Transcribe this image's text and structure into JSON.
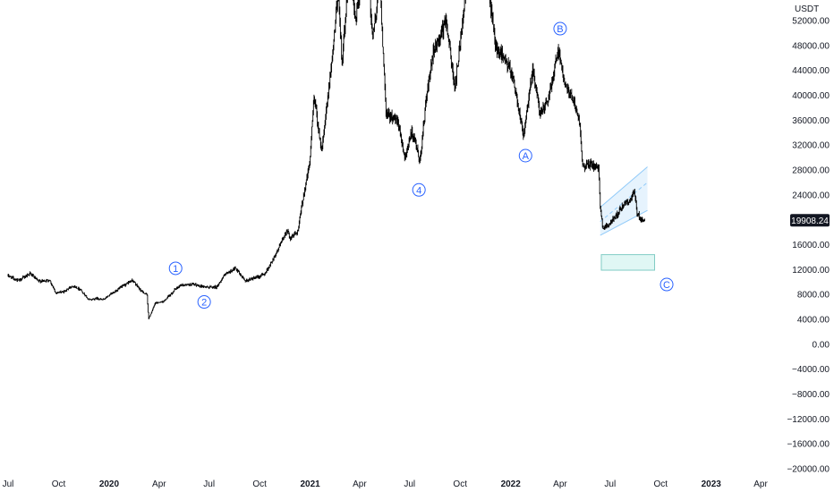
{
  "chart_data": {
    "type": "candlestick",
    "quote_unit": "USDT",
    "last_price_label": "19908.24",
    "last_price": 19908.24,
    "ylim": [
      -20000,
      54000
    ],
    "y_ticks": [
      "52000.00",
      "48000.00",
      "44000.00",
      "40000.00",
      "36000.00",
      "32000.00",
      "28000.00",
      "24000.00",
      "20000.00",
      "16000.00",
      "12000.00",
      "8000.00",
      "4000.00",
      "0.00",
      "−4000.00",
      "−8000.00",
      "−12000.00",
      "−16000.00",
      "−20000.00"
    ],
    "y_tick_values": [
      52000,
      48000,
      44000,
      40000,
      36000,
      32000,
      28000,
      24000,
      20000,
      16000,
      12000,
      8000,
      4000,
      0,
      -4000,
      -8000,
      -12000,
      -16000,
      -20000
    ],
    "x_ticks": [
      {
        "label": "Jul",
        "date": "2019-07-01",
        "bold": false
      },
      {
        "label": "Oct",
        "date": "2019-10-01",
        "bold": false
      },
      {
        "label": "2020",
        "date": "2020-01-01",
        "bold": true
      },
      {
        "label": "Apr",
        "date": "2020-04-01",
        "bold": false
      },
      {
        "label": "Jul",
        "date": "2020-07-01",
        "bold": false
      },
      {
        "label": "Oct",
        "date": "2020-10-01",
        "bold": false
      },
      {
        "label": "2021",
        "date": "2021-01-01",
        "bold": true
      },
      {
        "label": "Apr",
        "date": "2021-04-01",
        "bold": false
      },
      {
        "label": "Jul",
        "date": "2021-07-01",
        "bold": false
      },
      {
        "label": "Oct",
        "date": "2021-10-01",
        "bold": false
      },
      {
        "label": "2022",
        "date": "2022-01-01",
        "bold": true
      },
      {
        "label": "Apr",
        "date": "2022-04-01",
        "bold": false
      },
      {
        "label": "Jul",
        "date": "2022-07-01",
        "bold": false
      },
      {
        "label": "Oct",
        "date": "2022-10-01",
        "bold": false
      },
      {
        "label": "2023",
        "date": "2023-01-01",
        "bold": true
      },
      {
        "label": "Apr",
        "date": "2023-04-01",
        "bold": false
      }
    ],
    "price_path": [
      [
        "2019-07-01",
        11000
      ],
      [
        "2019-07-20",
        10200
      ],
      [
        "2019-08-10",
        11400
      ],
      [
        "2019-08-25",
        10100
      ],
      [
        "2019-09-15",
        10300
      ],
      [
        "2019-09-25",
        8300
      ],
      [
        "2019-10-10",
        8400
      ],
      [
        "2019-10-26",
        9400
      ],
      [
        "2019-11-10",
        8800
      ],
      [
        "2019-11-25",
        7100
      ],
      [
        "2019-12-10",
        7400
      ],
      [
        "2019-12-20",
        7100
      ],
      [
        "2020-01-15",
        8700
      ],
      [
        "2020-02-12",
        10300
      ],
      [
        "2020-02-28",
        8600
      ],
      [
        "2020-03-10",
        7900
      ],
      [
        "2020-03-12",
        5200
      ],
      [
        "2020-03-13",
        4100
      ],
      [
        "2020-03-25",
        6600
      ],
      [
        "2020-04-10",
        6900
      ],
      [
        "2020-04-30",
        8800
      ],
      [
        "2020-05-10",
        9500
      ],
      [
        "2020-06-01",
        9600
      ],
      [
        "2020-06-25",
        9200
      ],
      [
        "2020-07-15",
        9200
      ],
      [
        "2020-07-28",
        11000
      ],
      [
        "2020-08-17",
        12200
      ],
      [
        "2020-09-05",
        10200
      ],
      [
        "2020-09-25",
        10700
      ],
      [
        "2020-10-10",
        11300
      ],
      [
        "2020-10-21",
        12900
      ],
      [
        "2020-11-05",
        15500
      ],
      [
        "2020-11-20",
        18400
      ],
      [
        "2020-11-26",
        17000
      ],
      [
        "2020-12-10",
        18300
      ],
      [
        "2020-12-18",
        23000
      ],
      [
        "2020-12-31",
        29000
      ],
      [
        "2021-01-08",
        40000
      ],
      [
        "2021-01-22",
        31000
      ],
      [
        "2021-02-08",
        44000
      ],
      [
        "2021-02-21",
        57000
      ],
      [
        "2021-02-28",
        45000
      ],
      [
        "2021-03-13",
        61000
      ],
      [
        "2021-03-25",
        52000
      ],
      [
        "2021-04-14",
        64000
      ],
      [
        "2021-04-25",
        49000
      ],
      [
        "2021-05-08",
        58000
      ],
      [
        "2021-05-19",
        37000
      ],
      [
        "2021-06-10",
        36000
      ],
      [
        "2021-06-22",
        30000
      ],
      [
        "2021-07-05",
        34000
      ],
      [
        "2021-07-20",
        29500
      ],
      [
        "2021-08-01",
        40000
      ],
      [
        "2021-08-14",
        47000
      ],
      [
        "2021-09-06",
        52000
      ],
      [
        "2021-09-21",
        41000
      ],
      [
        "2021-10-01",
        48000
      ],
      [
        "2021-10-20",
        66000
      ],
      [
        "2021-11-10",
        68000
      ],
      [
        "2021-11-26",
        54000
      ],
      [
        "2021-12-04",
        48000
      ],
      [
        "2021-12-20",
        46000
      ],
      [
        "2022-01-05",
        43000
      ],
      [
        "2022-01-22",
        35000
      ],
      [
        "2022-01-24",
        33000
      ],
      [
        "2022-02-10",
        44000
      ],
      [
        "2022-02-24",
        37000
      ],
      [
        "2022-03-10",
        39000
      ],
      [
        "2022-03-28",
        47500
      ],
      [
        "2022-04-10",
        42000
      ],
      [
        "2022-04-28",
        38500
      ],
      [
        "2022-05-06",
        36000
      ],
      [
        "2022-05-12",
        28500
      ],
      [
        "2022-05-25",
        29000
      ],
      [
        "2022-06-10",
        28000
      ],
      [
        "2022-06-13",
        22500
      ],
      [
        "2022-06-18",
        18500
      ],
      [
        "2022-07-01",
        19500
      ],
      [
        "2022-07-15",
        21000
      ],
      [
        "2022-07-25",
        22500
      ],
      [
        "2022-08-05",
        23000
      ],
      [
        "2022-08-14",
        24500
      ],
      [
        "2022-08-19",
        21000
      ],
      [
        "2022-08-28",
        20000
      ],
      [
        "2022-09-02",
        19908.24
      ]
    ],
    "annotations": {
      "wave_labels": [
        {
          "label": "1",
          "date": "2020-05-01",
          "price": 12200
        },
        {
          "label": "2",
          "date": "2020-06-22",
          "price": 6800
        },
        {
          "label": "4",
          "date": "2021-07-18",
          "price": 24800
        },
        {
          "label": "A",
          "date": "2022-01-28",
          "price": 30300
        },
        {
          "label": "B",
          "date": "2022-04-01",
          "price": 50700
        },
        {
          "label": "C",
          "date": "2022-10-12",
          "price": 9600
        }
      ],
      "channel": {
        "start_date": "2022-06-13",
        "end_date": "2022-09-07",
        "upper_start": 22000,
        "upper_end": 28500,
        "lower_start": 17500,
        "lower_end": 21500,
        "mid_start": 19700,
        "mid_end": 26000
      },
      "target_box": {
        "start_date": "2022-06-15",
        "end_date": "2022-09-20",
        "price_top": 14400,
        "price_bottom": 11900
      }
    },
    "colors": {
      "candles": "#000000",
      "wave_label": "#2962ff",
      "channel_fill": "#e3f2fd",
      "channel_line": "#90caf9",
      "target_fill": "#e0f7f4",
      "target_stroke": "#80cbc4",
      "price_tag": "#131722",
      "axis_text": "#131722"
    }
  }
}
